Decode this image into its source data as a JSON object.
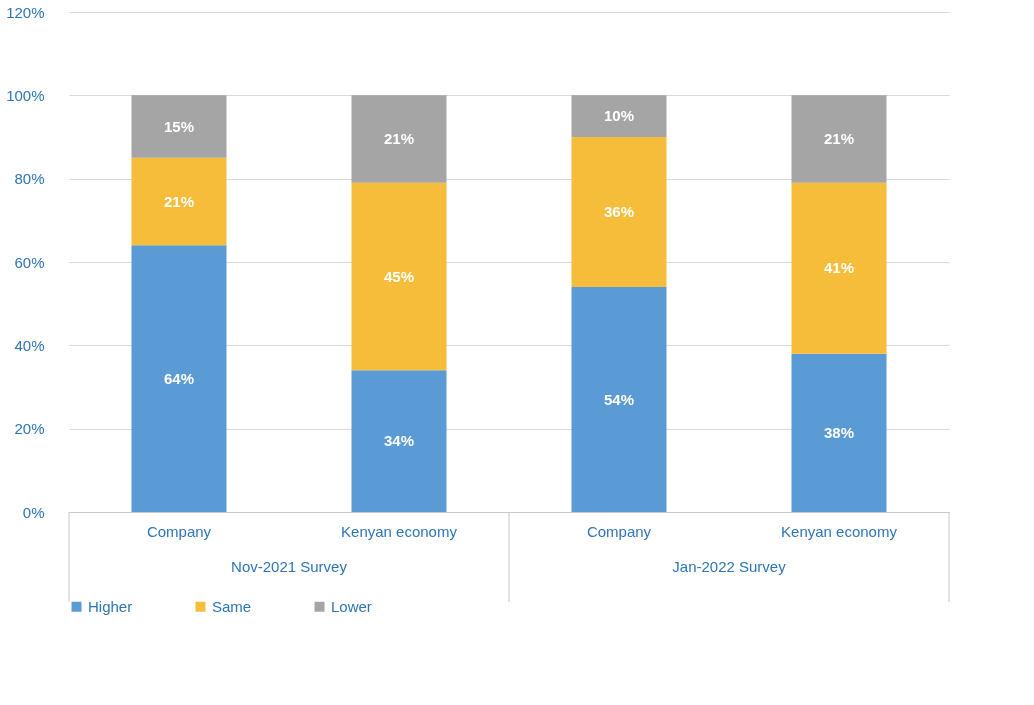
{
  "chart_data": {
    "type": "bar",
    "stacked": true,
    "categories": [
      "Company",
      "Kenyan economy",
      "Company",
      "Kenyan economy"
    ],
    "series": [
      {
        "name": "Higher",
        "color": "#5b9bd5",
        "values": [
          64,
          34,
          54,
          38
        ],
        "value_labels": [
          "64%",
          "34%",
          "54%",
          "38%"
        ]
      },
      {
        "name": "Same",
        "color": "#f6bd3a",
        "values": [
          21,
          45,
          36,
          41
        ],
        "value_labels": [
          "21%",
          "45%",
          "36%",
          "41%"
        ]
      },
      {
        "name": "Lower",
        "color": "#a5a5a5",
        "values": [
          15,
          21,
          10,
          21
        ],
        "value_labels": [
          "15%",
          "21%",
          "10%",
          "21%"
        ]
      }
    ],
    "ylim": [
      0,
      120
    ],
    "yticks": [
      {
        "value": 0,
        "label": "0%"
      },
      {
        "value": 20,
        "label": "20%"
      },
      {
        "value": 40,
        "label": "40%"
      },
      {
        "value": 60,
        "label": "60%"
      },
      {
        "value": 80,
        "label": "80%"
      },
      {
        "value": 100,
        "label": "100%"
      },
      {
        "value": 120,
        "label": "120%"
      }
    ],
    "annotations": [
      "Nov-2021 Survey",
      "Jan-2022 Survey"
    ],
    "grid": "y",
    "legend": "bottom"
  }
}
